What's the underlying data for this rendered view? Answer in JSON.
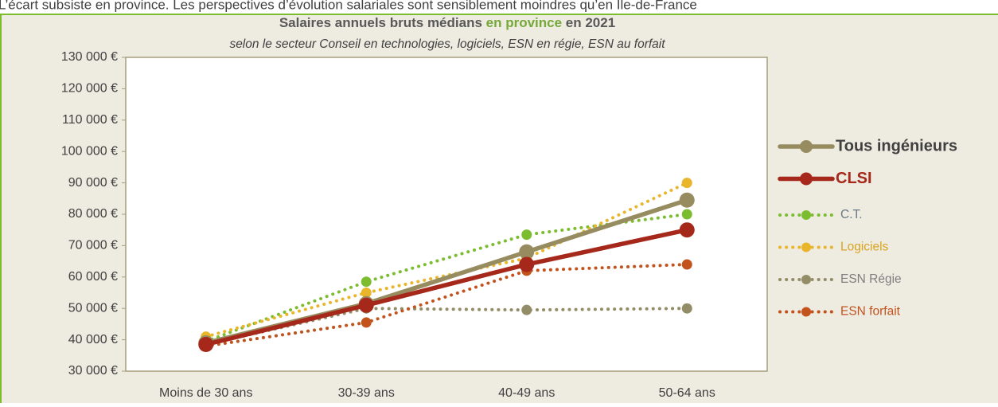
{
  "intro": "L’écart subsiste en province. Les perspectives d’évolution salariales sont sensiblement moindres qu’en Ile-de-France",
  "chart_data": {
    "type": "line",
    "title_parts": [
      "Salaires annuels bruts médians ",
      "en province",
      " en 2021"
    ],
    "title_colors": [
      "#595959",
      "#76a83a",
      "#595959"
    ],
    "subtitle": "selon le secteur Conseil en technologies, logiciels, ESN en régie, ESN au forfait",
    "categories": [
      "Moins de 30 ans",
      "30-39 ans",
      "40-49 ans",
      "50-64 ans"
    ],
    "ylim": [
      30000,
      130000
    ],
    "yticks": [
      {
        "value": 30000,
        "label": "30 000 €"
      },
      {
        "value": 40000,
        "label": "40 000 €"
      },
      {
        "value": 50000,
        "label": "50 000 €"
      },
      {
        "value": 60000,
        "label": "60 000 €"
      },
      {
        "value": 70000,
        "label": "70 000 €"
      },
      {
        "value": 80000,
        "label": "80 000 €"
      },
      {
        "value": 90000,
        "label": "90 000 €"
      },
      {
        "value": 100000,
        "label": "100 000 €"
      },
      {
        "value": 110000,
        "label": "110 000 €"
      },
      {
        "value": 120000,
        "label": "120 000 €"
      },
      {
        "value": 130000,
        "label": "130 000 €"
      }
    ],
    "grid": false,
    "legend": "right",
    "series": [
      {
        "name": "Tous ingénieurs",
        "color": "#978c5f",
        "label_color": "#404040",
        "style": "solid",
        "bold": true,
        "values": [
          39000,
          51500,
          68000,
          84500
        ]
      },
      {
        "name": "CLSI",
        "color": "#a5281b",
        "label_color": "#a5281b",
        "style": "solid",
        "bold": true,
        "values": [
          38500,
          51000,
          64000,
          75000
        ]
      },
      {
        "name": "C.T.",
        "color": "#7cbd2f",
        "label_color": "#6b7a86",
        "style": "dotted",
        "bold": false,
        "values": [
          39500,
          58500,
          73500,
          80000
        ]
      },
      {
        "name": "Logiciels",
        "color": "#e9b52b",
        "label_color": "#d9a421",
        "style": "dotted",
        "bold": false,
        "values": [
          41000,
          55000,
          66000,
          90000
        ]
      },
      {
        "name": "ESN Régie",
        "color": "#938d67",
        "label_color": "#7f7f7f",
        "style": "dotted",
        "bold": false,
        "values": [
          38500,
          50000,
          49500,
          50000
        ]
      },
      {
        "name": "ESN forfait",
        "color": "#c2531d",
        "label_color": "#c2531d",
        "style": "dotted",
        "bold": false,
        "values": [
          38000,
          45500,
          62000,
          64000
        ]
      }
    ]
  }
}
